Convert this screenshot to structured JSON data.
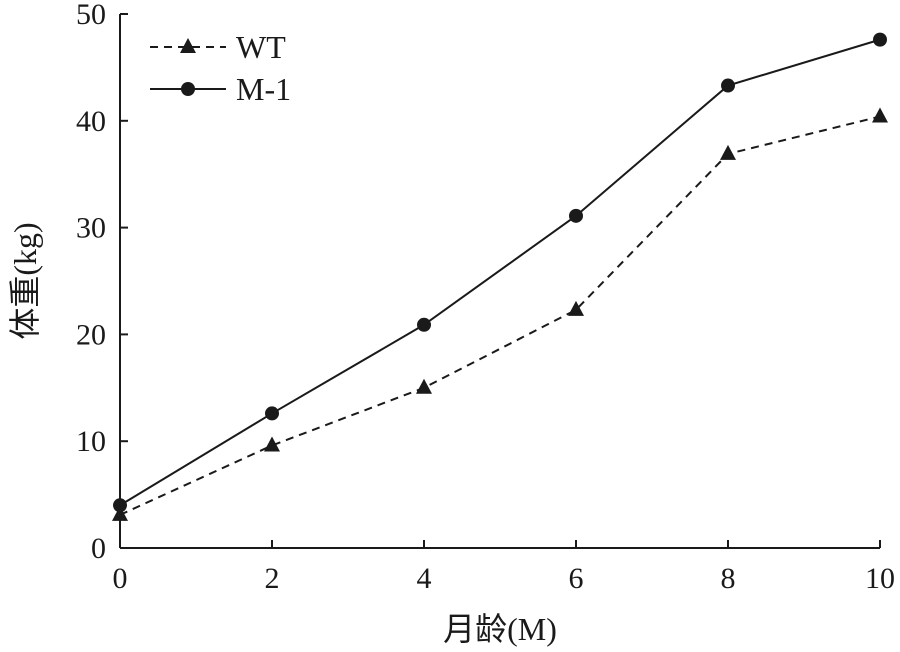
{
  "chart_data": {
    "type": "line",
    "title": "",
    "xlabel": "月龄(M)",
    "ylabel": "体重(kg)",
    "xlim": [
      0,
      10
    ],
    "ylim": [
      0,
      50
    ],
    "x_ticks": [
      0,
      2,
      4,
      6,
      8,
      10
    ],
    "y_ticks": [
      0,
      10,
      20,
      30,
      40,
      50
    ],
    "grid": false,
    "legend_position": "top-left",
    "series": [
      {
        "name": "WT",
        "marker": "triangle",
        "line_style": "dashed",
        "color": "#1a1a1a",
        "x": [
          0,
          2,
          4,
          6,
          8,
          10
        ],
        "y": [
          3.1,
          9.6,
          15.0,
          22.3,
          36.9,
          40.4
        ]
      },
      {
        "name": "M-1",
        "marker": "circle",
        "line_style": "solid",
        "color": "#1a1a1a",
        "x": [
          0,
          2,
          4,
          6,
          8,
          10
        ],
        "y": [
          4.0,
          12.6,
          20.9,
          31.1,
          43.3,
          47.6
        ]
      }
    ]
  }
}
